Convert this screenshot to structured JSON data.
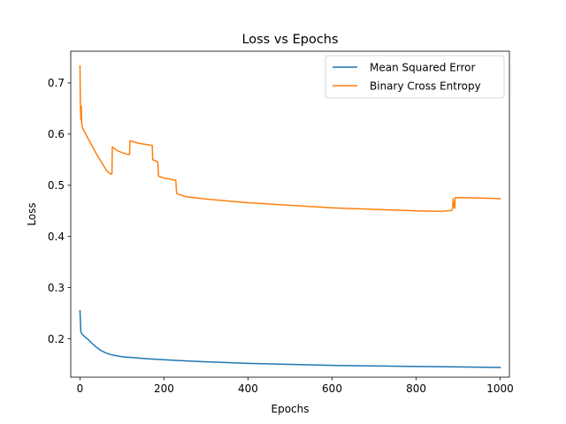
{
  "chart_data": {
    "type": "line",
    "title": "Loss vs Epochs",
    "xlabel": "Epochs",
    "ylabel": "Loss",
    "xlim": [
      -22,
      1022
    ],
    "ylim": [
      0.125,
      0.762
    ],
    "xticks": [
      0,
      200,
      400,
      600,
      800,
      1000
    ],
    "xtick_labels": [
      "0",
      "200",
      "400",
      "600",
      "800",
      "1000"
    ],
    "yticks": [
      0.2,
      0.3,
      0.4,
      0.5,
      0.6,
      0.7
    ],
    "ytick_labels": [
      "0.2",
      "0.3",
      "0.4",
      "0.5",
      "0.6",
      "0.7"
    ],
    "grid": false,
    "legend_position": "top-right",
    "series": [
      {
        "name": "Mean Squared Error",
        "color": "#1f77b4",
        "points": [
          [
            0,
            0.255
          ],
          [
            2,
            0.215
          ],
          [
            4,
            0.21
          ],
          [
            10,
            0.205
          ],
          [
            20,
            0.198
          ],
          [
            30,
            0.19
          ],
          [
            40,
            0.183
          ],
          [
            50,
            0.177
          ],
          [
            60,
            0.173
          ],
          [
            70,
            0.17
          ],
          [
            80,
            0.168
          ],
          [
            100,
            0.165
          ],
          [
            130,
            0.163
          ],
          [
            160,
            0.161
          ],
          [
            200,
            0.159
          ],
          [
            250,
            0.157
          ],
          [
            300,
            0.155
          ],
          [
            400,
            0.152
          ],
          [
            500,
            0.15
          ],
          [
            600,
            0.148
          ],
          [
            700,
            0.147
          ],
          [
            800,
            0.146
          ],
          [
            900,
            0.145
          ],
          [
            1000,
            0.144
          ]
        ]
      },
      {
        "name": "Binary Cross Entropy",
        "color": "#ff7f0e",
        "points": [
          [
            0,
            0.733
          ],
          [
            1,
            0.65
          ],
          [
            2,
            0.628
          ],
          [
            3,
            0.655
          ],
          [
            4,
            0.622
          ],
          [
            6,
            0.612
          ],
          [
            20,
            0.59
          ],
          [
            40,
            0.56
          ],
          [
            55,
            0.54
          ],
          [
            65,
            0.527
          ],
          [
            73,
            0.522
          ],
          [
            76,
            0.522
          ],
          [
            77,
            0.575
          ],
          [
            90,
            0.567
          ],
          [
            110,
            0.561
          ],
          [
            118,
            0.56
          ],
          [
            119,
            0.587
          ],
          [
            140,
            0.582
          ],
          [
            172,
            0.578
          ],
          [
            173,
            0.55
          ],
          [
            185,
            0.546
          ],
          [
            187,
            0.518
          ],
          [
            200,
            0.514
          ],
          [
            228,
            0.51
          ],
          [
            230,
            0.484
          ],
          [
            250,
            0.478
          ],
          [
            300,
            0.473
          ],
          [
            400,
            0.466
          ],
          [
            500,
            0.461
          ],
          [
            600,
            0.456
          ],
          [
            700,
            0.453
          ],
          [
            800,
            0.45
          ],
          [
            860,
            0.449
          ],
          [
            885,
            0.451
          ],
          [
            887,
            0.456
          ],
          [
            888,
            0.474
          ],
          [
            890,
            0.46
          ],
          [
            892,
            0.455
          ],
          [
            893,
            0.476
          ],
          [
            950,
            0.475
          ],
          [
            1000,
            0.474
          ]
        ]
      }
    ]
  }
}
